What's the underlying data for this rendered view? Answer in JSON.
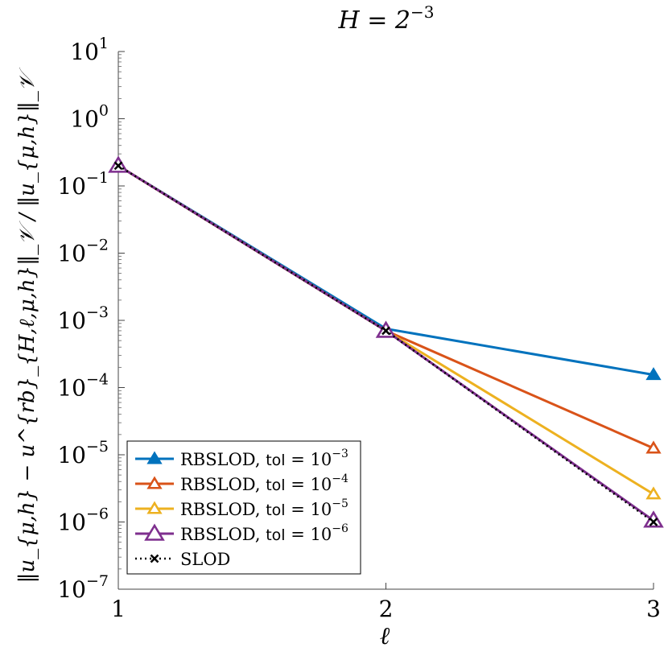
{
  "chart_data": {
    "type": "line",
    "title": "H = 2−3",
    "title_parts": {
      "base": "H = 2",
      "exp": "−3"
    },
    "xlabel": "ℓ",
    "ylabel": "‖u_{μ,h} − u^{rb}_{H,ℓ,μ,h}‖_𝒱 / ‖u_{μ,h}‖_𝒱",
    "x_scale": "linear",
    "y_scale": "log",
    "xlim": [
      1,
      3
    ],
    "ylim": [
      1e-07,
      10
    ],
    "x_ticks": [
      "1",
      "2",
      "3"
    ],
    "y_ticks": [
      {
        "value": 10,
        "base": "10",
        "exp": "1"
      },
      {
        "value": 1,
        "base": "10",
        "exp": "0"
      },
      {
        "value": 0.1,
        "base": "10",
        "exp": "−1"
      },
      {
        "value": 0.01,
        "base": "10",
        "exp": "−2"
      },
      {
        "value": 0.001,
        "base": "10",
        "exp": "−3"
      },
      {
        "value": 0.0001,
        "base": "10",
        "exp": "−4"
      },
      {
        "value": 1e-05,
        "base": "10",
        "exp": "−5"
      },
      {
        "value": 1e-06,
        "base": "10",
        "exp": "−6"
      },
      {
        "value": 1e-07,
        "base": "10",
        "exp": "−7"
      }
    ],
    "grid": false,
    "legend_position": "bottom-left",
    "x": [
      1,
      2,
      3
    ],
    "series": [
      {
        "name": "RBSLOD, tol = 10−3",
        "label_prefix": "RBSLOD, ",
        "label_tol": "tol",
        "label_eq": " = 10",
        "label_exp": "−3",
        "color": "#0072bd",
        "marker": "filled-triangle",
        "values": [
          0.2,
          0.00075,
          0.000155
        ]
      },
      {
        "name": "RBSLOD, tol = 10−4",
        "label_prefix": "RBSLOD, ",
        "label_tol": "tol",
        "label_eq": " = 10",
        "label_exp": "−4",
        "color": "#d95319",
        "marker": "open-triangle",
        "values": [
          0.2,
          0.0007,
          1.25e-05
        ]
      },
      {
        "name": "RBSLOD, tol = 10−5",
        "label_prefix": "RBSLOD, ",
        "label_tol": "tol",
        "label_eq": " = 10",
        "label_exp": "−5",
        "color": "#edb120",
        "marker": "open-triangle",
        "values": [
          0.2,
          0.0007,
          2.6e-06
        ]
      },
      {
        "name": "RBSLOD, tol = 10−6",
        "label_prefix": "RBSLOD, ",
        "label_tol": "tol",
        "label_eq": " = 10",
        "label_exp": "−6",
        "color": "#7e2f8e",
        "marker": "open-triangle-large",
        "values": [
          0.2,
          0.0007,
          1.05e-06
        ]
      },
      {
        "name": "SLOD",
        "label_prefix": "SLOD",
        "label_tol": "",
        "label_eq": "",
        "label_exp": "",
        "color": "#000000",
        "marker": "cross",
        "dashed": true,
        "values": [
          0.2,
          0.0007,
          1e-06
        ]
      }
    ]
  }
}
